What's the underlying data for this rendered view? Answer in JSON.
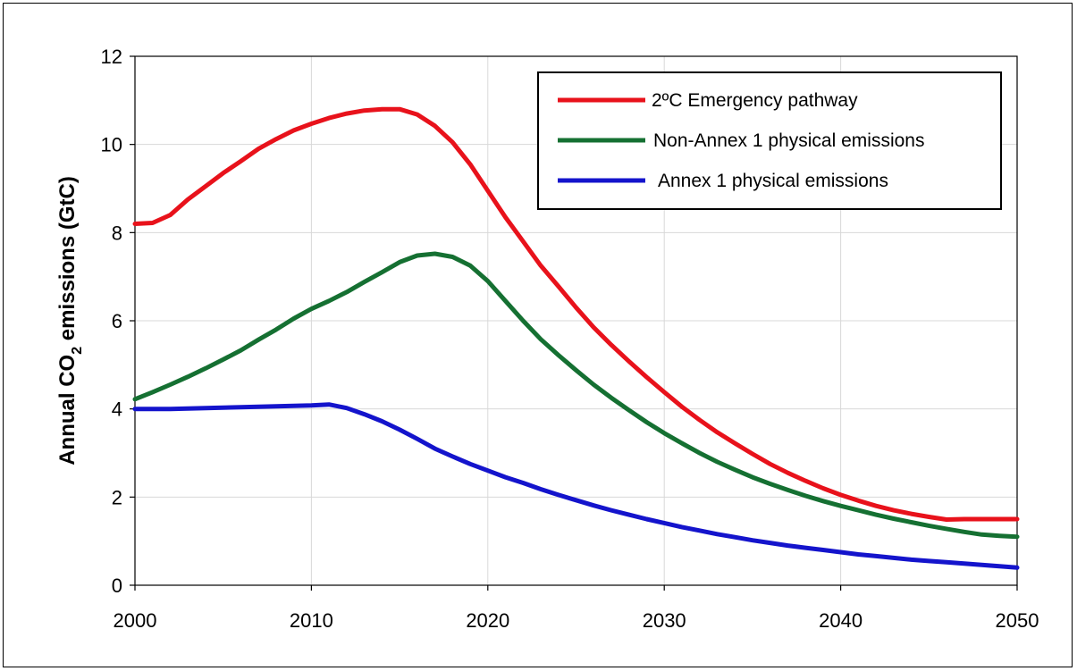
{
  "chart_data": {
    "type": "line",
    "title": "",
    "xlabel": "",
    "ylabel": {
      "prefix": "Annual CO",
      "subscript": "2",
      "suffix": " emissions  (GtC)"
    },
    "xlim": [
      2000,
      2050
    ],
    "ylim": [
      0,
      12
    ],
    "xticks": [
      "2000",
      "2010",
      "2020",
      "2030",
      "2040",
      "2050"
    ],
    "yticks": [
      "0",
      "2",
      "4",
      "6",
      "8",
      "10",
      "12"
    ],
    "grid": true,
    "legend_position": "top-right",
    "series": [
      {
        "name": "2ºC Emergency pathway",
        "color": "#e8121b",
        "x": [
          2000,
          2001,
          2002,
          2003,
          2004,
          2005,
          2006,
          2007,
          2008,
          2009,
          2010,
          2011,
          2012,
          2013,
          2014,
          2015,
          2016,
          2017,
          2018,
          2019,
          2020,
          2021,
          2022,
          2023,
          2024,
          2025,
          2026,
          2027,
          2028,
          2029,
          2030,
          2031,
          2032,
          2033,
          2034,
          2035,
          2036,
          2037,
          2038,
          2039,
          2040,
          2041,
          2042,
          2043,
          2044,
          2045,
          2046,
          2047,
          2048,
          2049,
          2050
        ],
        "y": [
          8.2,
          8.22,
          8.4,
          8.75,
          9.05,
          9.35,
          9.62,
          9.9,
          10.12,
          10.32,
          10.47,
          10.6,
          10.7,
          10.77,
          10.8,
          10.8,
          10.68,
          10.42,
          10.05,
          9.55,
          8.95,
          8.35,
          7.8,
          7.25,
          6.78,
          6.3,
          5.85,
          5.45,
          5.08,
          4.72,
          4.38,
          4.05,
          3.75,
          3.47,
          3.22,
          2.98,
          2.75,
          2.55,
          2.37,
          2.2,
          2.05,
          1.92,
          1.8,
          1.7,
          1.62,
          1.55,
          1.49,
          1.5,
          1.5,
          1.5,
          1.5
        ]
      },
      {
        "name": "Non-Annex 1 physical emissions",
        "color": "#157032",
        "x": [
          2000,
          2001,
          2002,
          2003,
          2004,
          2005,
          2006,
          2007,
          2008,
          2009,
          2010,
          2011,
          2012,
          2013,
          2014,
          2015,
          2016,
          2017,
          2018,
          2019,
          2020,
          2021,
          2022,
          2023,
          2024,
          2025,
          2026,
          2027,
          2028,
          2029,
          2030,
          2031,
          2032,
          2033,
          2034,
          2035,
          2036,
          2037,
          2038,
          2039,
          2040,
          2041,
          2042,
          2043,
          2044,
          2045,
          2046,
          2047,
          2048,
          2049,
          2050
        ],
        "y": [
          4.22,
          4.38,
          4.55,
          4.73,
          4.92,
          5.12,
          5.33,
          5.57,
          5.8,
          6.05,
          6.27,
          6.45,
          6.65,
          6.88,
          7.1,
          7.33,
          7.48,
          7.52,
          7.45,
          7.25,
          6.9,
          6.45,
          6.0,
          5.58,
          5.22,
          4.88,
          4.55,
          4.25,
          3.97,
          3.7,
          3.45,
          3.22,
          3.0,
          2.8,
          2.62,
          2.45,
          2.3,
          2.16,
          2.03,
          1.91,
          1.8,
          1.7,
          1.6,
          1.51,
          1.43,
          1.35,
          1.28,
          1.21,
          1.15,
          1.12,
          1.1
        ]
      },
      {
        "name": "Annex 1 physical emissions",
        "color": "#1414cc",
        "x": [
          2000,
          2001,
          2002,
          2003,
          2004,
          2005,
          2006,
          2007,
          2008,
          2009,
          2010,
          2011,
          2012,
          2013,
          2014,
          2015,
          2016,
          2017,
          2018,
          2019,
          2020,
          2021,
          2022,
          2023,
          2024,
          2025,
          2026,
          2027,
          2028,
          2029,
          2030,
          2031,
          2032,
          2033,
          2034,
          2035,
          2036,
          2037,
          2038,
          2039,
          2040,
          2041,
          2042,
          2043,
          2044,
          2045,
          2046,
          2047,
          2048,
          2049,
          2050
        ],
        "y": [
          4.0,
          4.0,
          4.0,
          4.01,
          4.02,
          4.03,
          4.04,
          4.05,
          4.06,
          4.07,
          4.08,
          4.1,
          4.02,
          3.88,
          3.72,
          3.53,
          3.32,
          3.1,
          2.92,
          2.75,
          2.6,
          2.45,
          2.32,
          2.18,
          2.05,
          1.93,
          1.81,
          1.7,
          1.6,
          1.5,
          1.41,
          1.32,
          1.24,
          1.16,
          1.09,
          1.02,
          0.96,
          0.9,
          0.85,
          0.8,
          0.75,
          0.7,
          0.66,
          0.62,
          0.58,
          0.55,
          0.52,
          0.49,
          0.46,
          0.43,
          0.4
        ]
      }
    ]
  }
}
